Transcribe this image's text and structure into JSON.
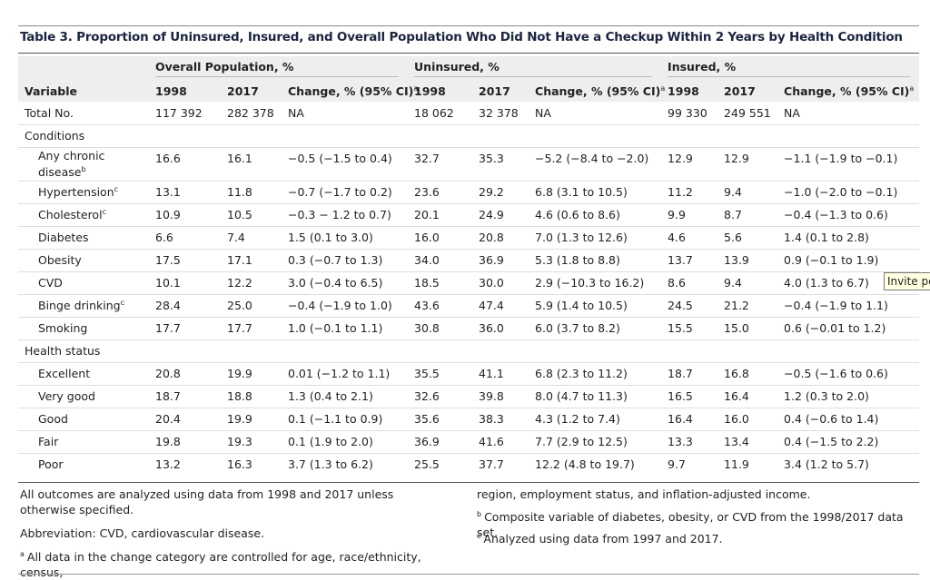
{
  "title": "Table 3. Proportion of Uninsured, Insured, and Overall Population Who Did Not Have a Checkup Within 2 Years by Health Condition",
  "header": {
    "groups": [
      "Overall Population, %",
      "Uninsured, %",
      "Insured, %"
    ],
    "columns": [
      "Variable",
      "1998",
      "2017",
      "Change, % (95% CI)",
      "1998",
      "2017",
      "Change, % (95% CI)",
      "1998",
      "2017",
      "Change, % (95% CI)"
    ],
    "change_sup": "a"
  },
  "rows": [
    {
      "label": "Total No.",
      "cells": [
        "117 392",
        "282 378",
        "NA",
        "18 062",
        "32 378",
        "NA",
        "99 330",
        "249 551",
        "NA"
      ]
    },
    {
      "label": "Conditions",
      "section": true
    },
    {
      "label": "Any chronic disease",
      "sup": "b",
      "indent": true,
      "cells": [
        "16.6",
        "16.1",
        "−0.5 (−1.5 to 0.4)",
        "32.7",
        "35.3",
        "−5.2 (−8.4 to −2.0)",
        "12.9",
        "12.9",
        "−1.1 (−1.9 to −0.1)"
      ]
    },
    {
      "label": "Hypertension",
      "sup": "c",
      "indent": true,
      "cells": [
        "13.1",
        "11.8",
        "−0.7 (−1.7 to 0.2)",
        "23.6",
        "29.2",
        "6.8 (3.1 to 10.5)",
        "11.2",
        "9.4",
        "−1.0 (−2.0 to −0.1)"
      ]
    },
    {
      "label": "Cholesterol",
      "sup": "c",
      "indent": true,
      "cells": [
        "10.9",
        "10.5",
        "−0.3 − 1.2 to 0.7)",
        "20.1",
        "24.9",
        "4.6 (0.6 to 8.6)",
        "9.9",
        "8.7",
        "−0.4 (−1.3 to 0.6)"
      ]
    },
    {
      "label": "Diabetes",
      "indent": true,
      "cells": [
        "6.6",
        "7.4",
        "1.5 (0.1 to 3.0)",
        "16.0",
        "20.8",
        "7.0 (1.3 to 12.6)",
        "4.6",
        "5.6",
        "1.4 (0.1 to 2.8)"
      ]
    },
    {
      "label": "Obesity",
      "indent": true,
      "cells": [
        "17.5",
        "17.1",
        "0.3 (−0.7 to 1.3)",
        "34.0",
        "36.9",
        "5.3 (1.8 to 8.8)",
        "13.7",
        "13.9",
        "0.9 (−0.1 to 1.9)"
      ]
    },
    {
      "label": "CVD",
      "indent": true,
      "cells": [
        "10.1",
        "12.2",
        "3.0 (−0.4 to 6.5)",
        "18.5",
        "30.0",
        "2.9 (−10.3 to 16.2)",
        "8.6",
        "9.4",
        "4.0 (1.3 to 6.7)"
      ]
    },
    {
      "label": "Binge drinking",
      "sup": "c",
      "indent": true,
      "cells": [
        "28.4",
        "25.0",
        "−0.4 (−1.9 to 1.0)",
        "43.6",
        "47.4",
        "5.9 (1.4 to 10.5)",
        "24.5",
        "21.2",
        "−0.4 (−1.9 to 1.1)"
      ]
    },
    {
      "label": "Smoking",
      "indent": true,
      "cells": [
        "17.7",
        "17.7",
        "1.0 (−0.1 to 1.1)",
        "30.8",
        "36.0",
        "6.0 (3.7 to 8.2)",
        "15.5",
        "15.0",
        "0.6 (−0.01 to 1.2)"
      ]
    },
    {
      "label": "Health status",
      "section": true
    },
    {
      "label": "Excellent",
      "indent": true,
      "cells": [
        "20.8",
        "19.9",
        "0.01 (−1.2 to 1.1)",
        "35.5",
        "41.1",
        "6.8 (2.3 to 11.2)",
        "18.7",
        "16.8",
        "−0.5 (−1.6 to 0.6)"
      ]
    },
    {
      "label": "Very good",
      "indent": true,
      "cells": [
        "18.7",
        "18.8",
        "1.3 (0.4 to 2.1)",
        "32.6",
        "39.8",
        "8.0 (4.7 to 11.3)",
        "16.5",
        "16.4",
        "1.2 (0.3 to 2.0)"
      ]
    },
    {
      "label": "Good",
      "indent": true,
      "cells": [
        "20.4",
        "19.9",
        "0.1 (−1.1 to 0.9)",
        "35.6",
        "38.3",
        "4.3 (1.2 to 7.4)",
        "16.4",
        "16.0",
        "0.4 (−0.6 to 1.4)"
      ]
    },
    {
      "label": "Fair",
      "indent": true,
      "cells": [
        "19.8",
        "19.3",
        "0.1 (1.9 to 2.0)",
        "36.9",
        "41.6",
        "7.7 (2.9 to 12.5)",
        "13.3",
        "13.4",
        "0.4 (−1.5 to 2.2)"
      ]
    },
    {
      "label": "Poor",
      "indent": true,
      "cells": [
        "13.2",
        "16.3",
        "3.7 (1.3 to 6.2)",
        "25.5",
        "37.7",
        "12.2 (4.8 to 19.7)",
        "9.7",
        "11.9",
        "3.4 (1.2 to 5.7)"
      ]
    }
  ],
  "footnotes": {
    "left": [
      {
        "text": "All outcomes are analyzed using data from 1998 and 2017 unless otherwise specified."
      },
      {
        "text": "Abbreviation: CVD, cardiovascular disease."
      },
      {
        "mark": "a",
        "text": "All data in the change category are controlled for age, race/ethnicity, census,"
      }
    ],
    "right": [
      {
        "text": "region, employment status, and inflation-adjusted income."
      },
      {
        "mark": "b",
        "text": "Composite variable of diabetes, obesity, or CVD from the 1998/2017 data set."
      },
      {
        "mark": "c",
        "text": "Analyzed using data from 1997 and 2017."
      }
    ]
  },
  "tooltip": "Invite pe"
}
